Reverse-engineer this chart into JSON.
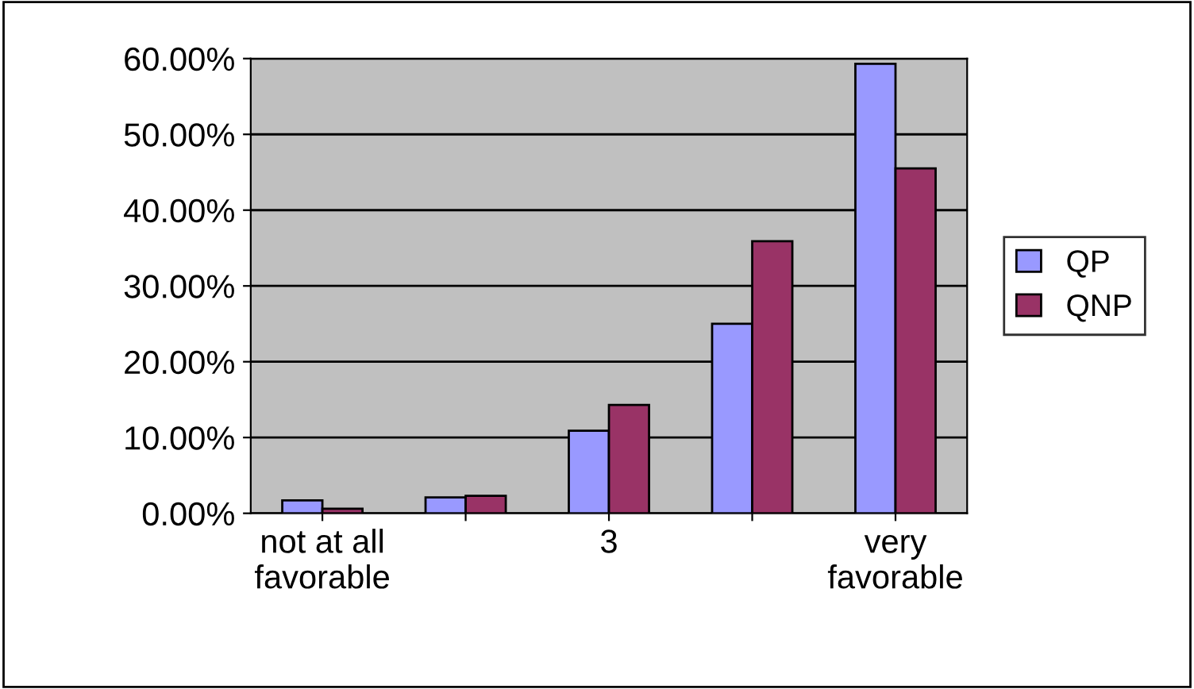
{
  "chart_data": {
    "type": "bar",
    "categories": [
      "not at all\nfavorable",
      null,
      "3",
      null,
      "very\nfavorable"
    ],
    "series": [
      {
        "name": "QP",
        "color": "#9999ff",
        "values": [
          1.7,
          2.1,
          10.9,
          25.0,
          59.3
        ]
      },
      {
        "name": "QNP",
        "color": "#993366",
        "values": [
          0.6,
          2.3,
          14.3,
          35.9,
          45.5
        ]
      }
    ],
    "ylim": [
      0,
      60
    ],
    "yticks": [
      {
        "value": 0,
        "label": "0.00%"
      },
      {
        "value": 10,
        "label": "10.00%"
      },
      {
        "value": 20,
        "label": "20.00%"
      },
      {
        "value": 30,
        "label": "30.00%"
      },
      {
        "value": 40,
        "label": "40.00%"
      },
      {
        "value": 50,
        "label": "50.00%"
      },
      {
        "value": 60,
        "label": "60.00%"
      }
    ],
    "grid": "y",
    "legend": "right"
  }
}
